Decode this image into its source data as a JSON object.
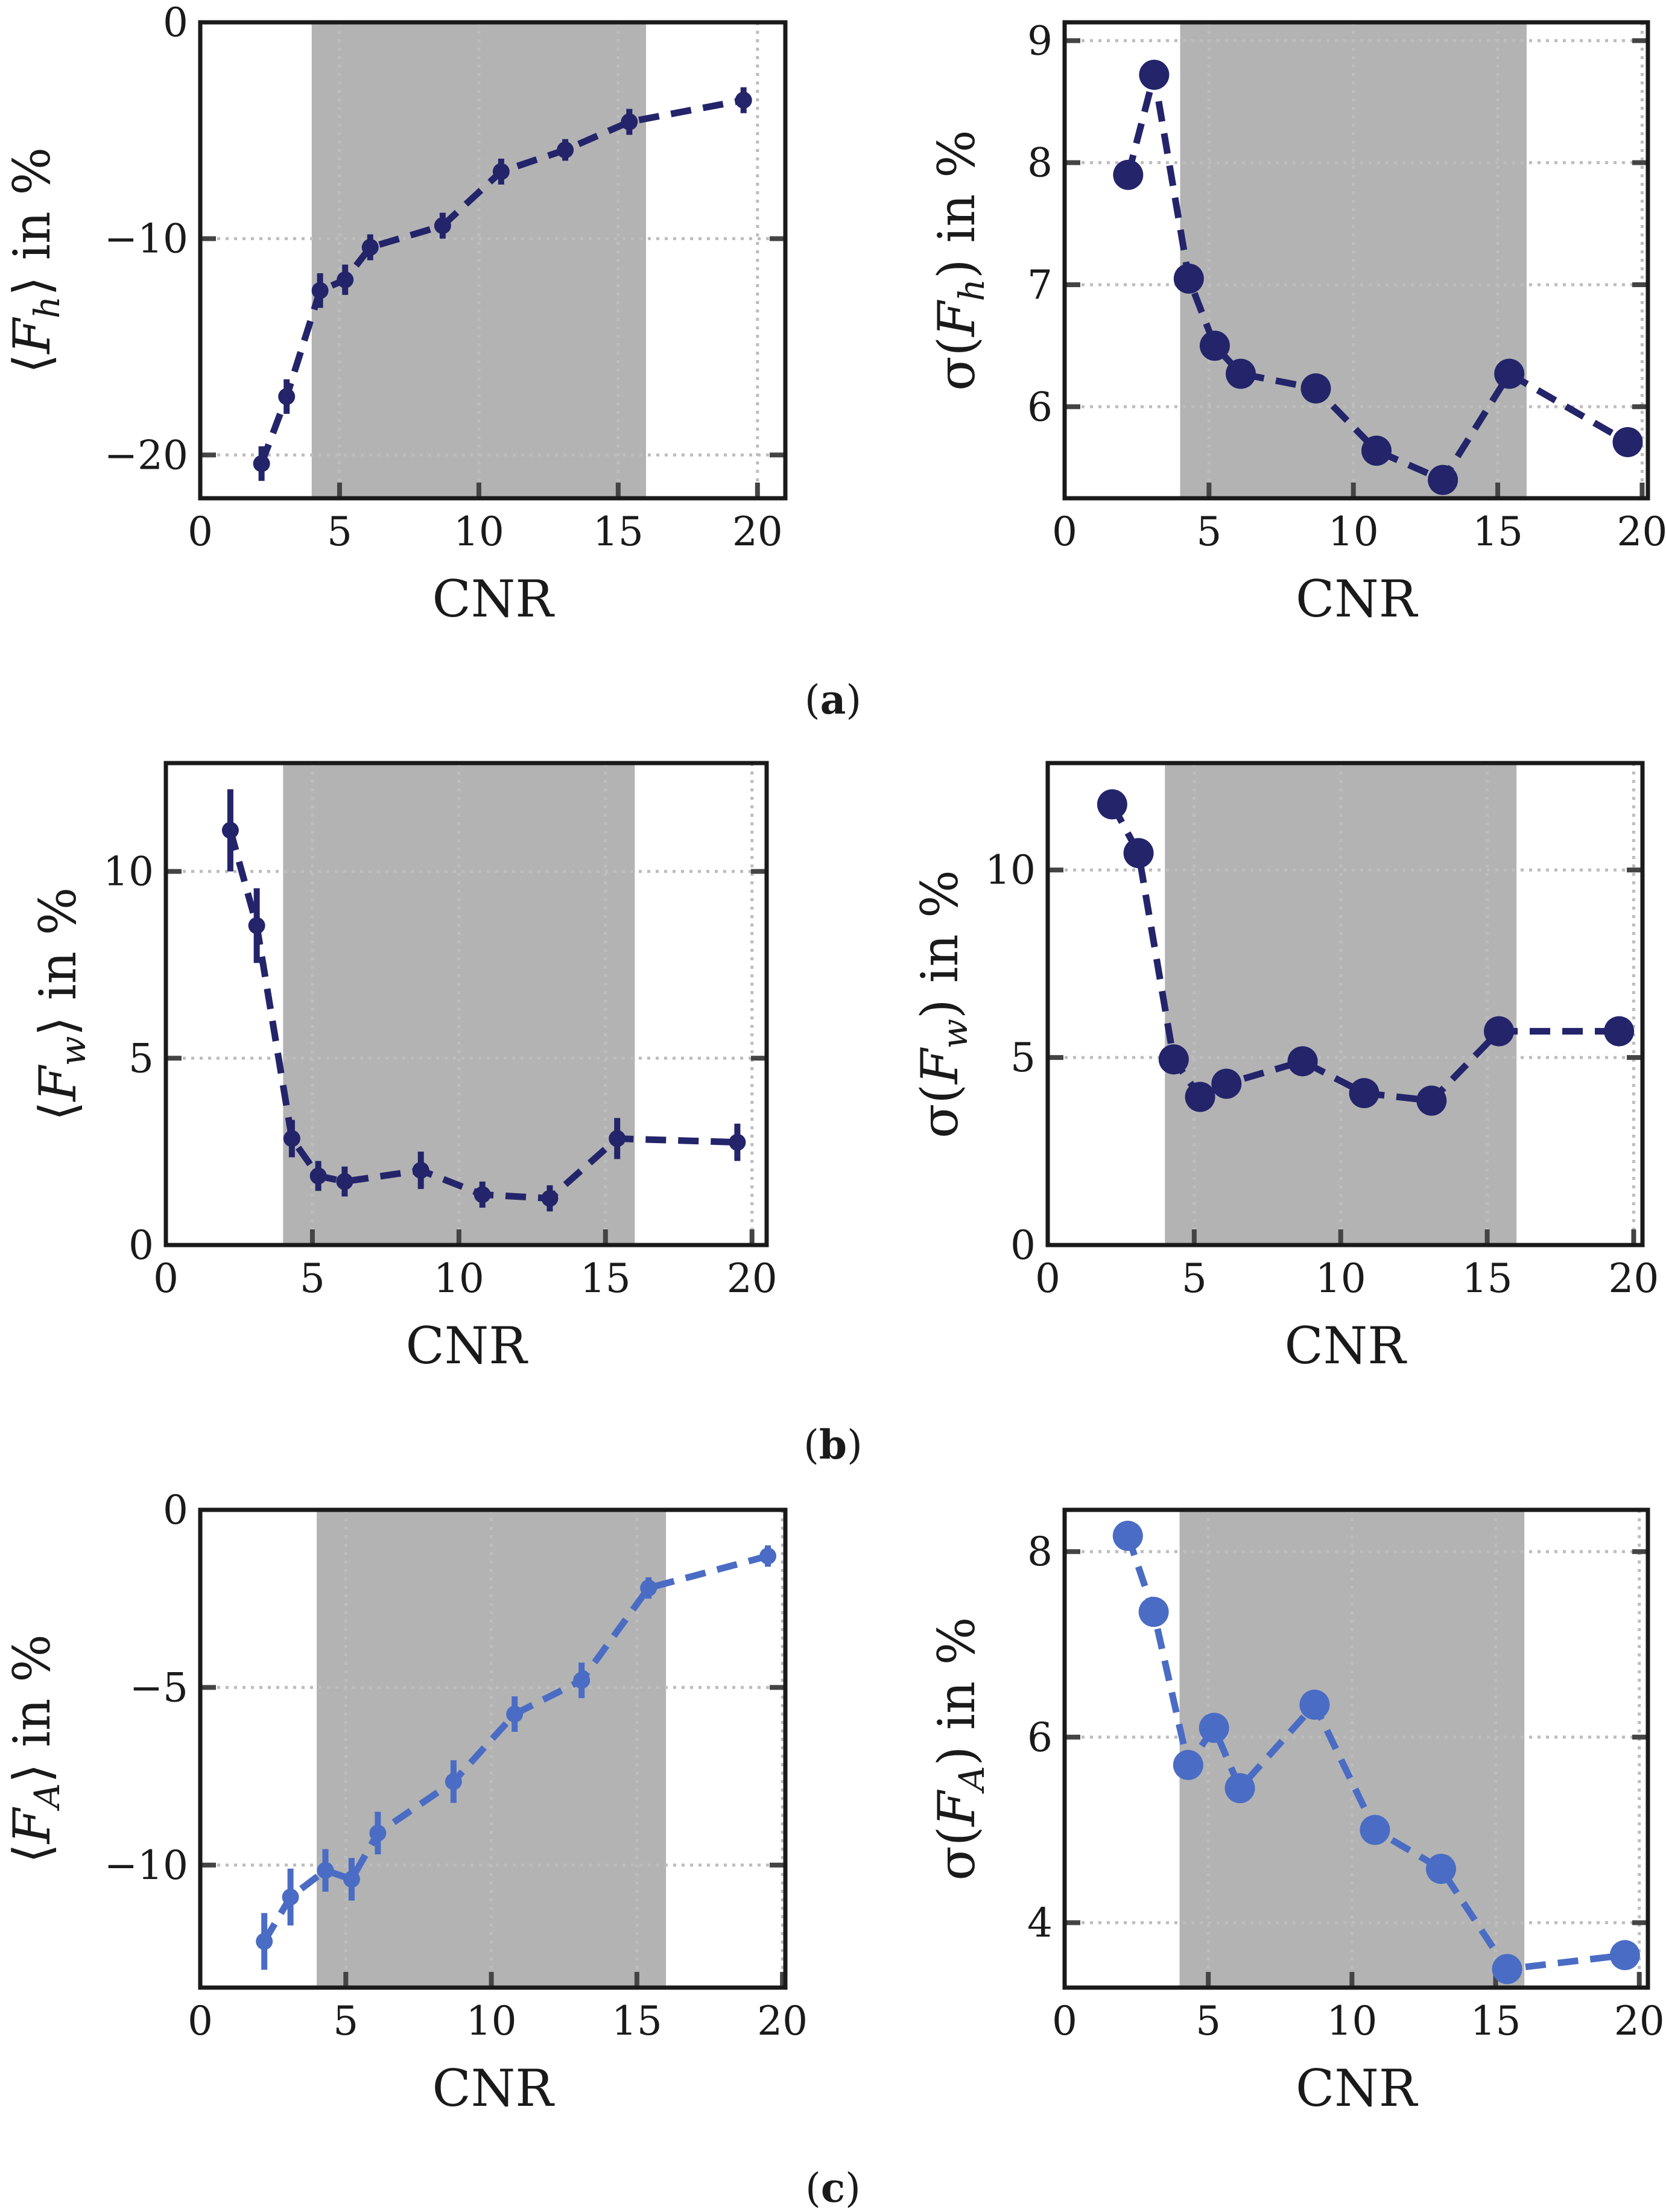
{
  "captions": [
    {
      "open": "(",
      "letter": "a",
      "close": ")"
    },
    {
      "open": "(",
      "letter": "b",
      "close": ")"
    },
    {
      "open": "(",
      "letter": "c",
      "close": ")"
    }
  ],
  "colors": {
    "dark_blue": "#24246b",
    "light_blue": "#4a6cc4",
    "shade": "#b3b3b3"
  },
  "shaded_region": [
    4,
    16
  ],
  "chart_data": [
    {
      "id": "a-left",
      "type": "line",
      "title": "",
      "xlabel": "CNR",
      "ylabel": "⟨F_h⟩ in %",
      "ylabel_parts": {
        "open": "⟨",
        "symbol": "F",
        "sub": "h",
        "close": "⟩ in %"
      },
      "xlim": [
        0,
        21
      ],
      "ylim": [
        -22,
        0
      ],
      "xticks": [
        0,
        5,
        10,
        15,
        20
      ],
      "xtick_labels": [
        "0",
        "5",
        "10",
        "15",
        "20"
      ],
      "yticks": [
        -20,
        -10,
        0
      ],
      "ytick_labels": [
        "−20",
        "−10",
        "0"
      ],
      "grid": true,
      "color": "#24246b",
      "marker": "small",
      "series": [
        {
          "name": "⟨F_h⟩",
          "x": [
            2.2,
            3.1,
            4.3,
            5.2,
            6.1,
            8.7,
            10.8,
            13.1,
            15.4,
            19.5
          ],
          "y": [
            -20.4,
            -17.3,
            -12.4,
            -11.9,
            -10.4,
            -9.4,
            -6.9,
            -5.9,
            -4.6,
            -3.6
          ],
          "err": [
            0.8,
            0.8,
            0.8,
            0.7,
            0.6,
            0.6,
            0.6,
            0.5,
            0.6,
            0.6
          ]
        }
      ]
    },
    {
      "id": "a-right",
      "type": "line",
      "title": "",
      "xlabel": "CNR",
      "ylabel": "σ(F_h) in %",
      "ylabel_parts": {
        "open": "σ(",
        "symbol": "F",
        "sub": "h",
        "close": ") in %"
      },
      "xlim": [
        0,
        20.2
      ],
      "ylim": [
        5.25,
        9.15
      ],
      "xticks": [
        0,
        5,
        10,
        15,
        20
      ],
      "xtick_labels": [
        "0",
        "5",
        "10",
        "15",
        "20"
      ],
      "yticks": [
        6,
        7,
        8,
        9
      ],
      "ytick_labels": [
        "6",
        "7",
        "8",
        "9"
      ],
      "grid": true,
      "color": "#24246b",
      "marker": "large",
      "series": [
        {
          "name": "σ(F_h)",
          "x": [
            2.2,
            3.1,
            4.3,
            5.2,
            6.1,
            8.7,
            10.8,
            13.1,
            15.4,
            19.5
          ],
          "y": [
            7.9,
            8.72,
            7.05,
            6.5,
            6.27,
            6.15,
            5.64,
            5.4,
            6.27,
            5.71
          ]
        }
      ]
    },
    {
      "id": "b-left",
      "type": "line",
      "title": "",
      "xlabel": "CNR",
      "ylabel": "⟨F_w⟩ in %",
      "ylabel_parts": {
        "open": "⟨",
        "symbol": "F",
        "sub": "w",
        "close": "⟩ in %"
      },
      "xlim": [
        0,
        20.5
      ],
      "ylim": [
        0,
        12.9
      ],
      "xticks": [
        0,
        5,
        10,
        15,
        20
      ],
      "xtick_labels": [
        "0",
        "5",
        "10",
        "15",
        "20"
      ],
      "yticks": [
        0,
        5,
        10
      ],
      "ytick_labels": [
        "0",
        "5",
        "10"
      ],
      "grid": true,
      "color": "#24246b",
      "marker": "small",
      "series": [
        {
          "name": "⟨F_w⟩",
          "x": [
            2.2,
            3.1,
            4.3,
            5.2,
            6.1,
            8.7,
            10.8,
            13.1,
            15.4,
            19.5
          ],
          "y": [
            11.1,
            8.55,
            2.85,
            1.85,
            1.7,
            2.0,
            1.35,
            1.25,
            2.85,
            2.75
          ],
          "err": [
            1.1,
            1.0,
            0.5,
            0.4,
            0.4,
            0.5,
            0.35,
            0.35,
            0.55,
            0.5
          ]
        }
      ]
    },
    {
      "id": "b-right",
      "type": "line",
      "title": "",
      "xlabel": "CNR",
      "ylabel": "σ(F_w) in %",
      "ylabel_parts": {
        "open": "σ(",
        "symbol": "F",
        "sub": "w",
        "close": ") in %"
      },
      "xlim": [
        0,
        20.3
      ],
      "ylim": [
        0,
        12.85
      ],
      "xticks": [
        0,
        5,
        10,
        15,
        20
      ],
      "xtick_labels": [
        "0",
        "5",
        "10",
        "15",
        "20"
      ],
      "yticks": [
        0,
        5,
        10
      ],
      "ytick_labels": [
        "0",
        "5",
        "10"
      ],
      "grid": true,
      "color": "#24246b",
      "marker": "large",
      "series": [
        {
          "name": "σ(F_w)",
          "x": [
            2.2,
            3.1,
            4.3,
            5.2,
            6.1,
            8.7,
            10.8,
            13.1,
            15.4,
            19.5
          ],
          "y": [
            11.75,
            10.45,
            4.95,
            3.95,
            4.3,
            4.9,
            4.05,
            3.85,
            5.7,
            5.7
          ]
        }
      ]
    },
    {
      "id": "c-left",
      "type": "line",
      "title": "",
      "xlabel": "CNR",
      "ylabel": "⟨F_A⟩ in %",
      "ylabel_parts": {
        "open": "⟨",
        "symbol": "F",
        "sub": "A",
        "close": "⟩ in %"
      },
      "xlim": [
        0,
        20.1
      ],
      "ylim": [
        -13.45,
        0
      ],
      "xticks": [
        0,
        5,
        10,
        15,
        20
      ],
      "xtick_labels": [
        "0",
        "5",
        "10",
        "15",
        "20"
      ],
      "yticks": [
        -10,
        -5,
        0
      ],
      "ytick_labels": [
        "−10",
        "−5",
        "0"
      ],
      "grid": true,
      "color": "#4a6cc4",
      "marker": "small",
      "series": [
        {
          "name": "⟨F_A⟩",
          "x": [
            2.2,
            3.1,
            4.3,
            5.2,
            6.1,
            8.7,
            10.8,
            13.1,
            15.4,
            19.5
          ],
          "y": [
            -12.15,
            -10.9,
            -10.15,
            -10.4,
            -9.1,
            -7.65,
            -5.75,
            -4.8,
            -2.2,
            -1.3
          ],
          "err": [
            0.8,
            0.8,
            0.6,
            0.6,
            0.6,
            0.6,
            0.5,
            0.5,
            0.3,
            0.3
          ]
        }
      ]
    },
    {
      "id": "c-right",
      "type": "line",
      "title": "",
      "xlabel": "CNR",
      "ylabel": "σ(F_A) in %",
      "ylabel_parts": {
        "open": "σ(",
        "symbol": "F",
        "sub": "A",
        "close": ") in %"
      },
      "xlim": [
        0,
        20.3
      ],
      "ylim": [
        3.3,
        8.45
      ],
      "xticks": [
        0,
        5,
        10,
        15,
        20
      ],
      "xtick_labels": [
        "0",
        "5",
        "10",
        "15",
        "20"
      ],
      "yticks": [
        4,
        6,
        8
      ],
      "ytick_labels": [
        "4",
        "6",
        "8"
      ],
      "grid": true,
      "color": "#4a6cc4",
      "marker": "large",
      "series": [
        {
          "name": "σ(F_A)",
          "x": [
            2.2,
            3.1,
            4.3,
            5.2,
            6.1,
            8.7,
            10.8,
            13.1,
            15.4,
            19.5
          ],
          "y": [
            8.17,
            7.35,
            5.7,
            6.1,
            5.45,
            6.35,
            5.0,
            4.58,
            3.5,
            3.65
          ]
        }
      ]
    }
  ]
}
